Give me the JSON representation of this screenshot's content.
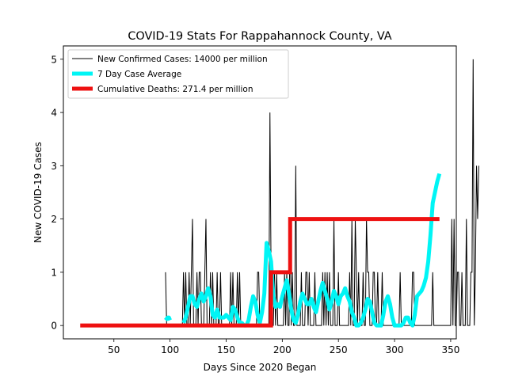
{
  "chart_data": {
    "type": "line",
    "title": "COVID-19 Stats For Rappahannock County, VA",
    "xlabel": "Days Since 2020 Began",
    "ylabel": "New COVID-19 Cases",
    "xlim": [
      5,
      355
    ],
    "ylim": [
      -0.25,
      5.25
    ],
    "xticks": [
      50,
      100,
      150,
      200,
      250,
      300,
      350
    ],
    "yticks": [
      0,
      1,
      2,
      3,
      4,
      5
    ],
    "grid": false,
    "legend_position": "upper-left",
    "series": [
      {
        "name": "New Confirmed Cases: 14000 per million",
        "color": "#000000",
        "x_start": 96,
        "values": [
          1,
          0,
          0,
          0,
          0,
          0,
          0,
          0,
          0,
          0,
          0,
          0,
          0,
          0,
          0,
          0,
          1,
          0,
          1,
          0,
          0,
          1,
          0,
          1,
          2,
          0,
          0,
          0,
          1,
          0,
          1,
          1,
          0,
          0,
          0,
          1,
          2,
          0,
          0,
          0,
          1,
          0,
          1,
          0,
          0,
          0,
          1,
          0,
          0,
          1,
          0,
          0,
          0,
          0,
          0,
          0,
          0,
          0,
          1,
          0,
          1,
          0,
          0,
          0,
          1,
          0,
          1,
          0,
          0,
          0,
          0,
          0,
          0,
          0,
          0,
          0,
          0,
          0,
          0,
          0,
          0,
          0,
          1,
          1,
          0,
          0,
          0,
          0,
          0,
          0,
          0,
          0,
          0,
          4,
          1,
          0,
          0,
          1,
          0,
          1,
          0,
          0,
          0,
          0,
          0,
          0,
          1,
          0,
          1,
          0,
          0,
          2,
          0,
          1,
          0,
          0,
          3,
          0,
          0,
          0,
          0,
          1,
          0,
          0,
          0,
          1,
          1,
          0,
          1,
          0,
          0,
          0,
          0,
          1,
          0,
          0,
          0,
          0,
          0,
          0,
          1,
          0,
          1,
          0,
          1,
          0,
          1,
          0,
          0,
          0,
          2,
          0,
          0,
          0,
          1,
          0,
          0,
          0,
          0,
          0,
          0,
          0,
          0,
          0,
          1,
          0,
          2,
          0,
          0,
          2,
          1,
          0,
          1,
          0,
          0,
          0,
          1,
          0,
          0,
          2,
          1,
          1,
          0,
          0,
          0,
          1,
          1,
          0,
          0,
          1,
          0,
          0,
          0,
          1,
          0,
          0,
          0,
          0,
          0,
          0,
          0,
          0,
          0,
          0,
          0,
          0,
          0,
          0,
          0,
          1,
          0,
          0,
          0,
          0,
          0,
          0,
          0,
          0,
          0,
          0,
          1,
          1,
          0,
          0,
          0,
          0,
          0,
          0,
          0,
          0,
          0,
          0,
          0,
          0,
          0,
          0,
          0,
          0,
          1,
          0,
          0,
          0,
          0,
          0,
          0,
          0,
          0,
          0,
          0,
          0,
          0,
          0,
          0,
          0,
          0,
          2,
          0,
          2,
          0,
          0,
          1,
          1,
          0,
          0,
          1,
          0,
          0,
          0,
          2,
          0,
          0,
          0,
          1,
          1,
          5,
          0,
          1,
          3,
          2,
          3
        ]
      },
      {
        "name": "7 Day Case Average",
        "color": "#00f5f5",
        "segments": [
          {
            "x": [
              96,
              98,
              99,
              100
            ],
            "y": [
              0.1,
              0.15,
              0.15,
              0.1
            ]
          },
          {
            "x": [
              112,
              114,
              116,
              118,
              120,
              122,
              124,
              126,
              128,
              130,
              132,
              134,
              136,
              138,
              140,
              142,
              144,
              146,
              148,
              150,
              152,
              154,
              156,
              158,
              160,
              162,
              164,
              166,
              168,
              170,
              172,
              174,
              176,
              178,
              180,
              182,
              184,
              186,
              188,
              190,
              192,
              194,
              196,
              198,
              200,
              202,
              204,
              206,
              208,
              210,
              212,
              214,
              216,
              218,
              220,
              222,
              224,
              226,
              228,
              230,
              232,
              234,
              236,
              238,
              240,
              242,
              244,
              246,
              248,
              250,
              252,
              254,
              256,
              258,
              260,
              262,
              264,
              266,
              268,
              270,
              272,
              274,
              276,
              278,
              280,
              282,
              284,
              286,
              288,
              290,
              292,
              294,
              296,
              298,
              300,
              302,
              304,
              306,
              308,
              310,
              312,
              314,
              316,
              318,
              320,
              322,
              324,
              326,
              328,
              330,
              332,
              334,
              336,
              338,
              340
            ],
            "y": [
              0.05,
              0.15,
              0.35,
              0.55,
              0.55,
              0.4,
              0.35,
              0.5,
              0.6,
              0.45,
              0.55,
              0.7,
              0.55,
              0.2,
              0.15,
              0.3,
              0.15,
              0.15,
              0.15,
              0.2,
              0.15,
              0.1,
              0.35,
              0.3,
              0.15,
              0.05,
              0.05,
              0.0,
              0.0,
              0.1,
              0.35,
              0.55,
              0.45,
              0.2,
              0.05,
              0.25,
              0.6,
              1.55,
              1.4,
              1.2,
              0.55,
              0.35,
              0.4,
              0.35,
              0.55,
              0.7,
              0.85,
              0.6,
              0.3,
              0.1,
              0.05,
              0.2,
              0.45,
              0.6,
              0.5,
              0.4,
              0.4,
              0.5,
              0.35,
              0.25,
              0.45,
              0.65,
              0.8,
              0.65,
              0.5,
              0.3,
              0.45,
              0.65,
              0.55,
              0.4,
              0.55,
              0.6,
              0.7,
              0.55,
              0.45,
              0.25,
              0.15,
              0.0,
              0.0,
              0.05,
              0.15,
              0.3,
              0.5,
              0.45,
              0.25,
              0.05,
              0.0,
              0.0,
              0.0,
              0.2,
              0.45,
              0.55,
              0.4,
              0.15,
              0.0,
              0.0,
              0.0,
              0.0,
              0.05,
              0.15,
              0.15,
              0.05,
              0.0,
              0.2,
              0.55,
              0.6,
              0.65,
              0.75,
              0.9,
              1.2,
              1.7,
              2.3,
              2.5,
              2.7,
              2.85
            ]
          }
        ]
      },
      {
        "name": "Cumulative Deaths: 271.4 per million",
        "color": "#ee1111",
        "x": [
          20,
          190,
          190,
          207,
          207,
          340
        ],
        "y": [
          0,
          0,
          1,
          1,
          2,
          2
        ]
      }
    ]
  }
}
